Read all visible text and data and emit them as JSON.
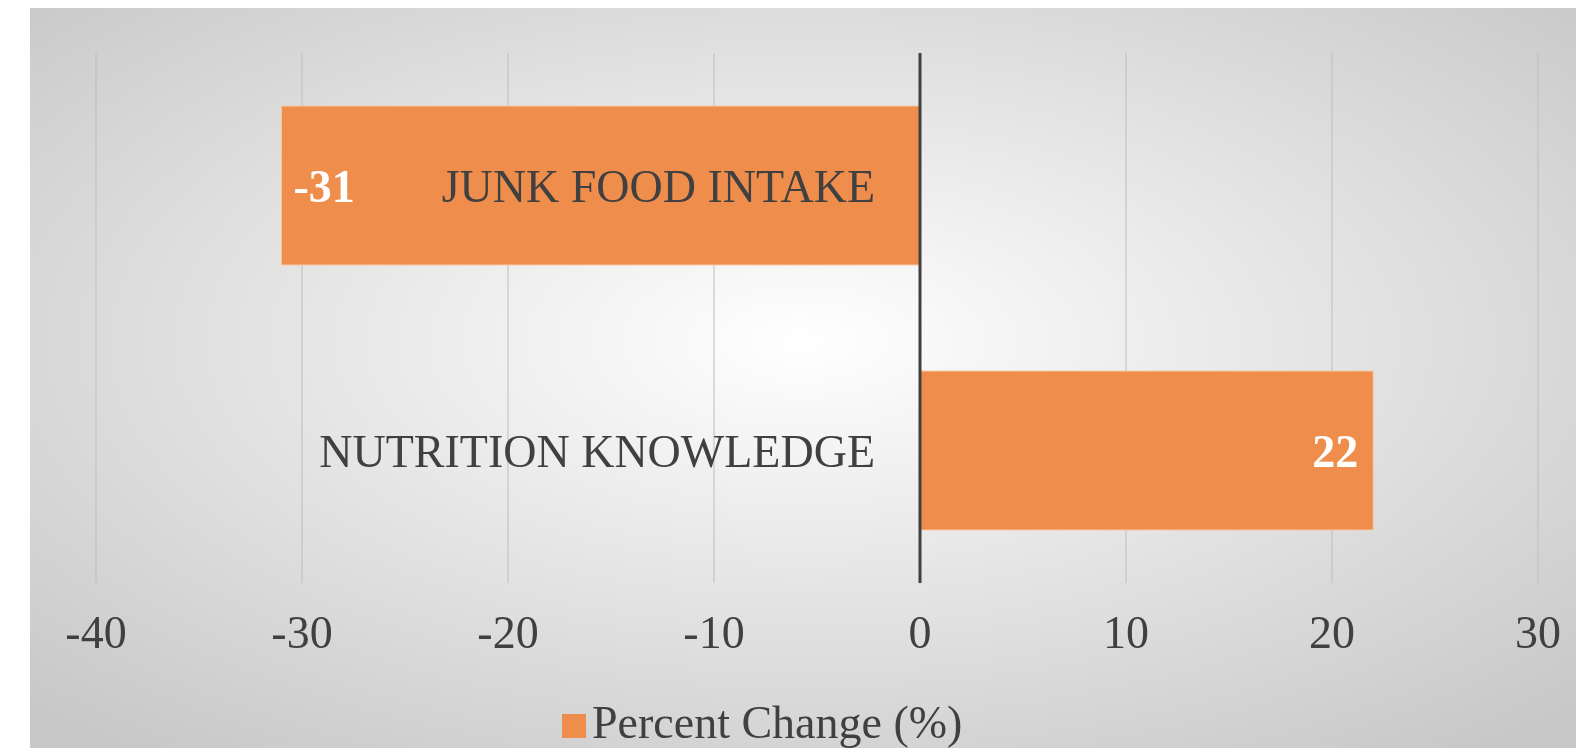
{
  "chart_data": {
    "type": "bar",
    "orientation": "horizontal",
    "categories": [
      "JUNK FOOD INTAKE",
      "NUTRITION KNOWLEDGE"
    ],
    "series": [
      {
        "name": "Percent Change (%)",
        "color": "#ef8e4c",
        "values": [
          -31,
          22
        ]
      }
    ],
    "xlim": [
      -40,
      30
    ],
    "xticks": [
      -40,
      -30,
      -20,
      -10,
      0,
      10,
      20,
      30
    ],
    "grid": "x",
    "legend": "bottom",
    "data_labels": true
  }
}
